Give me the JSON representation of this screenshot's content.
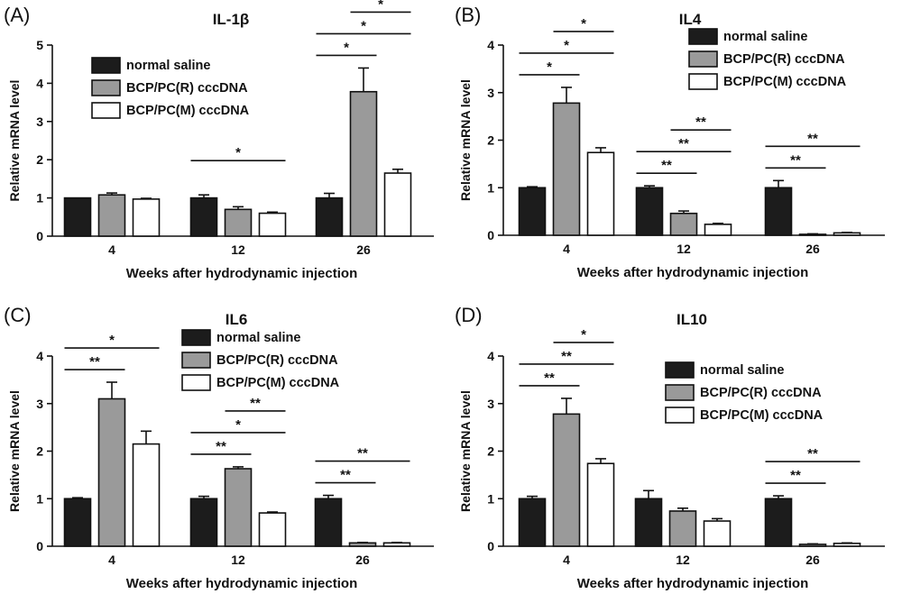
{
  "chart_data": [
    {
      "type": "bar",
      "panel_label": "(A)",
      "title": "IL-1β",
      "xlabel": "Weeks after hydrodynamic injection",
      "ylabel": "Relative mRNA level",
      "categories": [
        "4",
        "12",
        "26"
      ],
      "ylim": [
        0,
        5
      ],
      "yticks": [
        "0",
        "1",
        "2",
        "3",
        "4",
        "5"
      ],
      "legend_position": "upper-left",
      "series": [
        {
          "name": "normal saline",
          "color": "#1c1c1c",
          "values": [
            1.0,
            1.0,
            1.0
          ],
          "errors": [
            0.0,
            0.08,
            0.12
          ]
        },
        {
          "name": "BCP/PC(R) cccDNA",
          "color": "#9a9a9a",
          "values": [
            1.08,
            0.7,
            3.78
          ],
          "errors": [
            0.05,
            0.07,
            0.62
          ]
        },
        {
          "name": "BCP/PC(M) cccDNA",
          "color": "#ffffff",
          "values": [
            0.97,
            0.6,
            1.65
          ],
          "errors": [
            0.02,
            0.03,
            0.1
          ]
        }
      ],
      "significance": [
        {
          "group": 1,
          "from": 0,
          "to": 2,
          "label": "*"
        },
        {
          "group": 2,
          "from": 0,
          "to": 1,
          "label": "*"
        },
        {
          "group": 2,
          "from": 0,
          "to": 2,
          "label": "*"
        },
        {
          "group": 2,
          "from": 1,
          "to": 2,
          "label": "*"
        }
      ]
    },
    {
      "type": "bar",
      "panel_label": "(B)",
      "title": "IL4",
      "xlabel": "Weeks after hydrodynamic injection",
      "ylabel": "Relative mRNA level",
      "categories": [
        "4",
        "12",
        "26"
      ],
      "ylim": [
        0,
        4
      ],
      "yticks": [
        "0",
        "1",
        "2",
        "3",
        "4"
      ],
      "legend_position": "upper-right",
      "series": [
        {
          "name": "normal saline",
          "color": "#1c1c1c",
          "values": [
            1.0,
            1.0,
            1.0
          ],
          "errors": [
            0.02,
            0.04,
            0.15
          ]
        },
        {
          "name": "BCP/PC(R) cccDNA",
          "color": "#9a9a9a",
          "values": [
            2.78,
            0.46,
            0.02
          ],
          "errors": [
            0.33,
            0.05,
            0.01
          ]
        },
        {
          "name": "BCP/PC(M) cccDNA",
          "color": "#ffffff",
          "values": [
            1.74,
            0.23,
            0.05
          ],
          "errors": [
            0.1,
            0.02,
            0.01
          ]
        }
      ],
      "significance": [
        {
          "group": 0,
          "from": 0,
          "to": 1,
          "label": "*"
        },
        {
          "group": 0,
          "from": 0,
          "to": 2,
          "label": "*"
        },
        {
          "group": 0,
          "from": 1,
          "to": 2,
          "label": "*"
        },
        {
          "group": 1,
          "from": 0,
          "to": 1,
          "label": "**"
        },
        {
          "group": 1,
          "from": 0,
          "to": 2,
          "label": "**"
        },
        {
          "group": 1,
          "from": 1,
          "to": 2,
          "label": "**"
        },
        {
          "group": 2,
          "from": 0,
          "to": 1,
          "label": "**"
        },
        {
          "group": 2,
          "from": 0,
          "to": 2,
          "label": "**"
        }
      ]
    },
    {
      "type": "bar",
      "panel_label": "(C)",
      "title": "IL6",
      "xlabel": "Weeks after hydrodynamic injection",
      "ylabel": "Relative mRNA level",
      "categories": [
        "4",
        "12",
        "26"
      ],
      "ylim": [
        0,
        4
      ],
      "yticks": [
        "0",
        "1",
        "2",
        "3",
        "4"
      ],
      "legend_position": "upper-right",
      "series": [
        {
          "name": "normal saline",
          "color": "#1c1c1c",
          "values": [
            1.0,
            1.0,
            1.0
          ],
          "errors": [
            0.02,
            0.05,
            0.07
          ]
        },
        {
          "name": "BCP/PC(R) cccDNA",
          "color": "#9a9a9a",
          "values": [
            3.1,
            1.63,
            0.07
          ],
          "errors": [
            0.35,
            0.04,
            0.01
          ]
        },
        {
          "name": "BCP/PC(M) cccDNA",
          "color": "#ffffff",
          "values": [
            2.15,
            0.7,
            0.07
          ],
          "errors": [
            0.27,
            0.02,
            0.01
          ]
        }
      ],
      "significance": [
        {
          "group": 0,
          "from": 0,
          "to": 1,
          "label": "**"
        },
        {
          "group": 0,
          "from": 0,
          "to": 2,
          "label": "*"
        },
        {
          "group": 1,
          "from": 0,
          "to": 1,
          "label": "**"
        },
        {
          "group": 1,
          "from": 0,
          "to": 2,
          "label": "*"
        },
        {
          "group": 1,
          "from": 1,
          "to": 2,
          "label": "**"
        },
        {
          "group": 2,
          "from": 0,
          "to": 1,
          "label": "**"
        },
        {
          "group": 2,
          "from": 0,
          "to": 2,
          "label": "**"
        }
      ]
    },
    {
      "type": "bar",
      "panel_label": "(D)",
      "title": "IL10",
      "xlabel": "Weeks after hydrodynamic injection",
      "ylabel": "Relative mRNA level",
      "categories": [
        "4",
        "12",
        "26"
      ],
      "ylim": [
        0,
        4
      ],
      "yticks": [
        "0",
        "1",
        "2",
        "3",
        "4"
      ],
      "legend_position": "upper-right",
      "series": [
        {
          "name": "normal saline",
          "color": "#1c1c1c",
          "values": [
            1.0,
            1.0,
            1.0
          ],
          "errors": [
            0.05,
            0.17,
            0.06
          ]
        },
        {
          "name": "BCP/PC(R) cccDNA",
          "color": "#9a9a9a",
          "values": [
            2.78,
            0.74,
            0.04
          ],
          "errors": [
            0.33,
            0.06,
            0.01
          ]
        },
        {
          "name": "BCP/PC(M) cccDNA",
          "color": "#ffffff",
          "values": [
            1.74,
            0.53,
            0.06
          ],
          "errors": [
            0.1,
            0.05,
            0.01
          ]
        }
      ],
      "significance": [
        {
          "group": 0,
          "from": 0,
          "to": 1,
          "label": "**"
        },
        {
          "group": 0,
          "from": 0,
          "to": 2,
          "label": "**"
        },
        {
          "group": 0,
          "from": 1,
          "to": 2,
          "label": "*"
        },
        {
          "group": 2,
          "from": 0,
          "to": 1,
          "label": "**"
        },
        {
          "group": 2,
          "from": 0,
          "to": 2,
          "label": "**"
        }
      ]
    }
  ]
}
